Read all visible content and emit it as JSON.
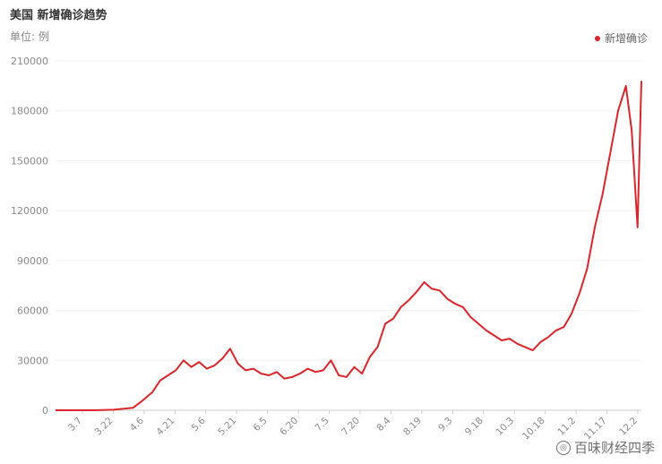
{
  "header": {
    "title": "美国 新增确诊趋势",
    "unit": "单位: 例"
  },
  "legend": {
    "label": "新增确诊",
    "color": "#d9262c"
  },
  "watermark": {
    "text": "百味财经四季"
  },
  "chart_data": {
    "type": "line",
    "title": "美国 新增确诊趋势",
    "ylabel": "单位: 例",
    "ylim": [
      0,
      210000
    ],
    "yticks": [
      0,
      30000,
      60000,
      90000,
      120000,
      150000,
      180000,
      210000
    ],
    "grid": true,
    "legend_position": "top-right",
    "xtick_labels": [
      "3.7",
      "3.22",
      "4.6",
      "4.21",
      "5.6",
      "5.21",
      "6.5",
      "6.20",
      "7.5",
      "7.20",
      "8.4",
      "8.19",
      "9.3",
      "9.18",
      "10.3",
      "10.18",
      "11.2",
      "11.17",
      "12.2"
    ],
    "series": [
      {
        "name": "新增确诊",
        "color": "#d9262c",
        "x": [
          0,
          10,
          20,
          30,
          40,
          45,
          50,
          54,
          58,
          62,
          66,
          70,
          74,
          78,
          82,
          86,
          90,
          94,
          98,
          102,
          106,
          110,
          114,
          118,
          122,
          126,
          130,
          134,
          138,
          142,
          146,
          150,
          154,
          158,
          162,
          166,
          170,
          174,
          178,
          182,
          186,
          190,
          194,
          198,
          202,
          206,
          210,
          214,
          218,
          222,
          226,
          230,
          234,
          238,
          242,
          246,
          250,
          254,
          258,
          262,
          266,
          270,
          274,
          278,
          282,
          286,
          290,
          294,
          297,
          300,
          302
        ],
        "values": [
          0,
          0,
          0,
          300,
          1500,
          6000,
          11000,
          18000,
          21000,
          24000,
          30000,
          26000,
          29000,
          25000,
          27000,
          31000,
          37000,
          28000,
          24000,
          25000,
          22000,
          21000,
          23000,
          19000,
          20000,
          22000,
          25000,
          23000,
          24000,
          30000,
          21000,
          20000,
          26000,
          22000,
          32000,
          38000,
          52000,
          55000,
          62000,
          66000,
          71000,
          77000,
          73000,
          72000,
          67000,
          64000,
          62000,
          56000,
          52000,
          48000,
          45000,
          42000,
          43000,
          40000,
          38000,
          36000,
          41000,
          44000,
          48000,
          50000,
          58000,
          70000,
          85000,
          110000,
          130000,
          155000,
          180000,
          195000,
          168000,
          110000,
          198000
        ]
      }
    ]
  }
}
